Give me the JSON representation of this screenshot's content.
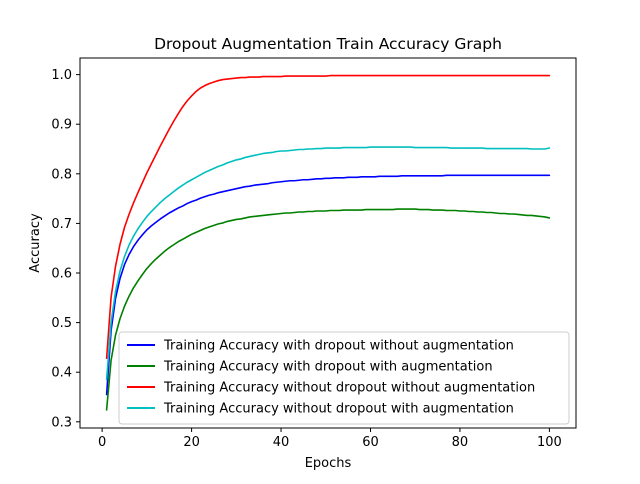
{
  "chart_data": {
    "type": "line",
    "title": "Dropout Augmentation Train Accuracy Graph",
    "xlabel": "Epochs",
    "ylabel": "Accuracy",
    "xlim": [
      -4.95,
      105.95
    ],
    "ylim": [
      0.2875,
      1.0335
    ],
    "xticks": [
      0,
      20,
      40,
      60,
      80,
      100
    ],
    "yticks": [
      0.3,
      0.4,
      0.5,
      0.6,
      0.7,
      0.8,
      0.9,
      1.0
    ],
    "ytick_labels": [
      "0.3",
      "0.4",
      "0.5",
      "0.6",
      "0.7",
      "0.8",
      "0.9",
      "1.0"
    ],
    "grid": false,
    "legend_position": "lower-right",
    "x": [
      1,
      2,
      3,
      4,
      5,
      6,
      7,
      8,
      9,
      10,
      11,
      12,
      13,
      14,
      15,
      16,
      17,
      18,
      19,
      20,
      21,
      22,
      23,
      24,
      25,
      26,
      27,
      28,
      29,
      30,
      31,
      32,
      33,
      34,
      35,
      36,
      37,
      38,
      39,
      40,
      41,
      42,
      43,
      44,
      45,
      46,
      47,
      48,
      49,
      50,
      51,
      52,
      53,
      54,
      55,
      56,
      57,
      58,
      59,
      60,
      61,
      62,
      63,
      64,
      65,
      66,
      67,
      68,
      69,
      70,
      71,
      72,
      73,
      74,
      75,
      76,
      77,
      78,
      79,
      80,
      81,
      82,
      83,
      84,
      85,
      86,
      87,
      88,
      89,
      90,
      91,
      92,
      93,
      94,
      95,
      96,
      97,
      98,
      99,
      100
    ],
    "series": [
      {
        "name": "Training Accuracy with dropout without augmentation",
        "color": "#0000ff",
        "values": [
          0.355,
          0.484,
          0.549,
          0.589,
          0.617,
          0.637,
          0.653,
          0.666,
          0.677,
          0.687,
          0.695,
          0.702,
          0.709,
          0.715,
          0.721,
          0.726,
          0.731,
          0.735,
          0.74,
          0.744,
          0.747,
          0.751,
          0.754,
          0.757,
          0.759,
          0.762,
          0.764,
          0.766,
          0.768,
          0.77,
          0.772,
          0.774,
          0.775,
          0.777,
          0.778,
          0.779,
          0.78,
          0.782,
          0.783,
          0.784,
          0.785,
          0.786,
          0.786,
          0.787,
          0.788,
          0.788,
          0.789,
          0.79,
          0.79,
          0.791,
          0.791,
          0.792,
          0.792,
          0.792,
          0.793,
          0.793,
          0.793,
          0.794,
          0.794,
          0.794,
          0.794,
          0.795,
          0.795,
          0.795,
          0.795,
          0.795,
          0.796,
          0.796,
          0.796,
          0.796,
          0.796,
          0.796,
          0.796,
          0.796,
          0.796,
          0.796,
          0.797,
          0.797,
          0.797,
          0.797,
          0.797,
          0.797,
          0.797,
          0.797,
          0.797,
          0.797,
          0.797,
          0.797,
          0.797,
          0.797,
          0.797,
          0.797,
          0.797,
          0.797,
          0.797,
          0.797,
          0.797,
          0.797,
          0.797,
          0.797
        ]
      },
      {
        "name": "Training Accuracy with dropout with augmentation",
        "color": "#008000",
        "values": [
          0.324,
          0.424,
          0.475,
          0.508,
          0.533,
          0.553,
          0.57,
          0.584,
          0.597,
          0.609,
          0.619,
          0.628,
          0.636,
          0.644,
          0.651,
          0.657,
          0.663,
          0.668,
          0.673,
          0.678,
          0.682,
          0.686,
          0.69,
          0.693,
          0.696,
          0.699,
          0.701,
          0.704,
          0.706,
          0.708,
          0.709,
          0.711,
          0.713,
          0.714,
          0.715,
          0.716,
          0.717,
          0.718,
          0.719,
          0.72,
          0.721,
          0.721,
          0.722,
          0.723,
          0.723,
          0.724,
          0.724,
          0.725,
          0.725,
          0.725,
          0.726,
          0.726,
          0.726,
          0.727,
          0.727,
          0.727,
          0.727,
          0.727,
          0.728,
          0.728,
          0.728,
          0.728,
          0.728,
          0.728,
          0.728,
          0.729,
          0.729,
          0.729,
          0.729,
          0.729,
          0.728,
          0.728,
          0.728,
          0.727,
          0.727,
          0.727,
          0.726,
          0.726,
          0.726,
          0.725,
          0.725,
          0.724,
          0.724,
          0.723,
          0.723,
          0.722,
          0.722,
          0.721,
          0.72,
          0.72,
          0.719,
          0.719,
          0.718,
          0.717,
          0.716,
          0.716,
          0.715,
          0.714,
          0.713,
          0.711
        ]
      },
      {
        "name": "Training Accuracy without dropout without augmentation",
        "color": "#ff0000",
        "values": [
          0.428,
          0.551,
          0.614,
          0.658,
          0.692,
          0.718,
          0.741,
          0.762,
          0.782,
          0.802,
          0.82,
          0.838,
          0.856,
          0.873,
          0.89,
          0.906,
          0.921,
          0.935,
          0.947,
          0.957,
          0.966,
          0.973,
          0.978,
          0.982,
          0.985,
          0.988,
          0.99,
          0.991,
          0.992,
          0.993,
          0.994,
          0.994,
          0.995,
          0.995,
          0.995,
          0.996,
          0.996,
          0.996,
          0.996,
          0.996,
          0.997,
          0.997,
          0.997,
          0.997,
          0.997,
          0.997,
          0.997,
          0.997,
          0.997,
          0.997,
          0.998,
          0.998,
          0.998,
          0.998,
          0.998,
          0.998,
          0.998,
          0.998,
          0.998,
          0.998,
          0.998,
          0.998,
          0.998,
          0.998,
          0.998,
          0.998,
          0.998,
          0.998,
          0.998,
          0.998,
          0.998,
          0.998,
          0.998,
          0.998,
          0.998,
          0.998,
          0.998,
          0.998,
          0.998,
          0.998,
          0.998,
          0.998,
          0.998,
          0.998,
          0.998,
          0.998,
          0.998,
          0.998,
          0.998,
          0.998,
          0.998,
          0.998,
          0.998,
          0.998,
          0.998,
          0.998,
          0.998,
          0.998,
          0.998,
          0.998
        ]
      },
      {
        "name": "Training Accuracy without dropout with augmentation",
        "color": "#00bfbf",
        "values": [
          0.385,
          0.5,
          0.563,
          0.604,
          0.633,
          0.656,
          0.674,
          0.689,
          0.702,
          0.714,
          0.724,
          0.733,
          0.742,
          0.75,
          0.757,
          0.764,
          0.771,
          0.777,
          0.783,
          0.788,
          0.793,
          0.798,
          0.803,
          0.807,
          0.811,
          0.815,
          0.818,
          0.822,
          0.825,
          0.828,
          0.83,
          0.833,
          0.835,
          0.837,
          0.839,
          0.841,
          0.842,
          0.843,
          0.845,
          0.846,
          0.846,
          0.847,
          0.848,
          0.849,
          0.849,
          0.85,
          0.85,
          0.851,
          0.851,
          0.852,
          0.852,
          0.852,
          0.852,
          0.853,
          0.853,
          0.853,
          0.853,
          0.853,
          0.853,
          0.854,
          0.854,
          0.854,
          0.854,
          0.854,
          0.854,
          0.854,
          0.854,
          0.854,
          0.854,
          0.853,
          0.853,
          0.853,
          0.853,
          0.853,
          0.853,
          0.853,
          0.853,
          0.852,
          0.852,
          0.852,
          0.852,
          0.852,
          0.852,
          0.852,
          0.852,
          0.851,
          0.851,
          0.851,
          0.851,
          0.851,
          0.851,
          0.851,
          0.851,
          0.851,
          0.851,
          0.85,
          0.85,
          0.85,
          0.85,
          0.852
        ]
      }
    ]
  }
}
